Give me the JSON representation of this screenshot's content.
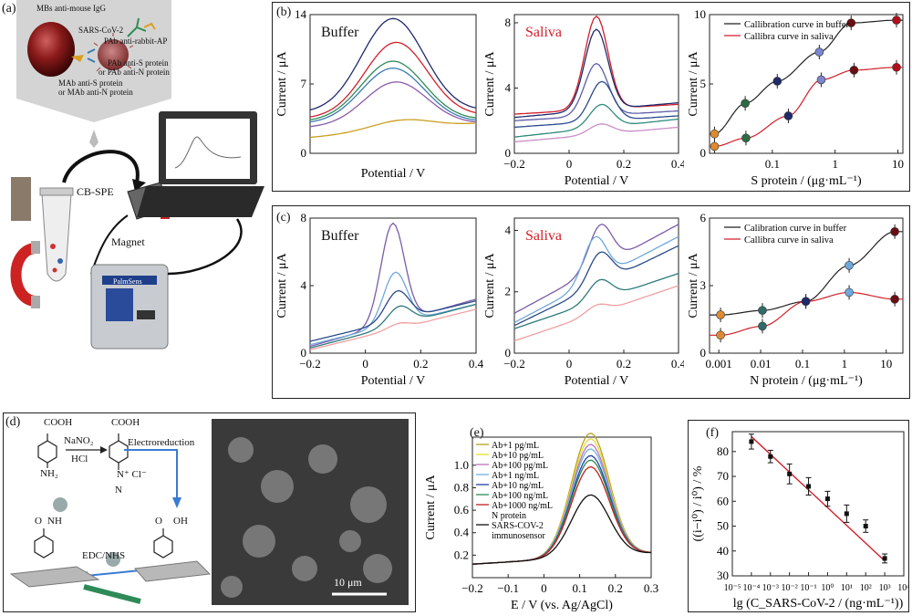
{
  "figure": {
    "panel_labels": {
      "a": "(a)",
      "b": "(b)",
      "c": "(c)",
      "d": "(d)",
      "e": "(e)",
      "f": "(f)"
    },
    "panel_a": {
      "texts": {
        "mbs": "MBs anti-mouse IgG",
        "virus": "SARS-CoV-2",
        "pab_ap": "PAb anti-rabbit-AP",
        "pab_s": "PAb anti-S protein",
        "pab_n": "or PAb anti-N protein",
        "mab_s": "MAb anti-S protein",
        "mab_n": "or MAb anti-N protein",
        "cbspe": "CB-SPE",
        "magnet": "Magnet",
        "device": "PalmSens"
      }
    },
    "panel_d": {
      "texts": {
        "cooh1": "COOH",
        "nh2": "NH₂",
        "nano2": "NaNO₂",
        "hcl": "HCl",
        "cooh2": "COOH",
        "n2cl": "N⁺ Cl⁻",
        "n": "N",
        "electroreduction": "Electroreduction",
        "nh": "NH",
        "oh": "OH",
        "o1": "O",
        "o2": "O",
        "edc": "EDC/NHS",
        "scalebar": "10 μm"
      }
    }
  },
  "chart_data": [
    {
      "id": "b1",
      "type": "line",
      "title": "Buffer",
      "xlabel": "Potential / V",
      "ylabel": "Current / μA",
      "xlim": [
        -0.2,
        0.4
      ],
      "ylim": [
        0,
        14
      ],
      "yticks": [
        "0",
        "7",
        "14"
      ],
      "xticks": [],
      "series": [
        {
          "color": "#1f2a6b",
          "peak": 13.6,
          "base_l": 4.1,
          "base_r": 4.3,
          "pos": 0.5
        },
        {
          "color": "#d11f2a",
          "peak": 11.2,
          "base_l": 3.5,
          "base_r": 3.8,
          "pos": 0.52
        },
        {
          "color": "#2e8b57",
          "peak": 9.3,
          "base_l": 3.2,
          "base_r": 3.4,
          "pos": 0.5
        },
        {
          "color": "#3a7bb0",
          "peak": 8.6,
          "base_l": 3.0,
          "base_r": 3.2,
          "pos": 0.5
        },
        {
          "color": "#8a5ca8",
          "peak": 7.2,
          "base_l": 2.6,
          "base_r": 3.0,
          "pos": 0.52
        },
        {
          "color": "#c9a020",
          "peak": 3.4,
          "base_l": 1.6,
          "base_r": 3.0,
          "pos": 0.6
        }
      ]
    },
    {
      "id": "b2",
      "type": "line",
      "title": "Saliva",
      "xlabel": "Potential / V",
      "ylabel": "Current / μA",
      "xlim": [
        -0.2,
        0.4
      ],
      "ylim": [
        0,
        8.5
      ],
      "yticks": [
        "0",
        "4",
        "8"
      ],
      "xticks": [
        "−0.2",
        "0",
        "0.2",
        "0.4"
      ],
      "series": [
        {
          "color": "#d11f2a",
          "peak": 8.4,
          "base_l": 2.4,
          "base_r": 3.0,
          "pos": 0.1
        },
        {
          "color": "#1f2a6b",
          "peak": 7.6,
          "base_l": 2.2,
          "base_r": 3.1,
          "pos": 0.1
        },
        {
          "color": "#5a5ca8",
          "peak": 5.5,
          "base_l": 2.0,
          "base_r": 2.6,
          "pos": 0.1
        },
        {
          "color": "#2a4a8a",
          "peak": 4.4,
          "base_l": 1.6,
          "base_r": 2.3,
          "pos": 0.12
        },
        {
          "color": "#2e8b7a",
          "peak": 3.0,
          "base_l": 1.0,
          "base_r": 2.1,
          "pos": 0.12
        },
        {
          "color": "#c88ec8",
          "peak": 1.8,
          "base_l": 0.7,
          "base_r": 1.6,
          "pos": 0.12
        }
      ]
    },
    {
      "id": "b3",
      "type": "scatter",
      "xscale": "log",
      "xlabel": "S protein / (μg·mL⁻¹)",
      "ylabel": "Current / μA",
      "xlim": [
        0.01,
        12
      ],
      "ylim": [
        0,
        10
      ],
      "yticks": [
        "0",
        "5",
        "10"
      ],
      "xticks": [
        "0.1",
        "1",
        "10"
      ],
      "legend": [
        "Callibration curve in buffer",
        "Callibra curve in saliva"
      ],
      "legend_position": "top",
      "series": [
        {
          "name": "Callibration curve in buffer",
          "color": "#222222",
          "x": [
            0.012,
            0.037,
            0.12,
            0.56,
            1.8,
            9.5
          ],
          "y": [
            1.4,
            3.6,
            5.2,
            7.3,
            9.4,
            9.6
          ]
        },
        {
          "name": "Callibra curve in saliva",
          "color": "#d11f2a",
          "x": [
            0.012,
            0.038,
            0.18,
            0.6,
            2.0,
            9.5
          ],
          "y": [
            0.5,
            1.1,
            2.7,
            5.3,
            6.0,
            6.2
          ]
        }
      ],
      "point_colors": [
        "#e08a30",
        "#2e6b44",
        "#1f2a6b",
        "#7a86cf",
        "#6a0e12",
        "#b30e18"
      ]
    },
    {
      "id": "c1",
      "type": "line",
      "title": "Buffer",
      "xlabel": "Potential / V",
      "ylabel": "Current / μA",
      "xlim": [
        -0.2,
        0.4
      ],
      "ylim": [
        0,
        8
      ],
      "yticks": [
        "0",
        "4",
        "8"
      ],
      "xticks": [
        "−0.2",
        "0",
        "0.2",
        "0.4"
      ],
      "series": [
        {
          "color": "#7a5ca8",
          "peak": 7.7,
          "base_l": 0.4,
          "base_r": 3.2,
          "pos": 0.1
        },
        {
          "color": "#6fa8dc",
          "peak": 4.8,
          "base_l": 0.5,
          "base_r": 2.9,
          "pos": 0.11
        },
        {
          "color": "#2a4a8a",
          "peak": 3.7,
          "base_l": 0.7,
          "base_r": 3.1,
          "pos": 0.12
        },
        {
          "color": "#2e7a7a",
          "peak": 2.8,
          "base_l": 0.3,
          "base_r": 2.9,
          "pos": 0.13
        },
        {
          "color": "#f0a0a0",
          "peak": 1.8,
          "base_l": 0.2,
          "base_r": 2.6,
          "pos": 0.14
        }
      ]
    },
    {
      "id": "c2",
      "type": "line",
      "title": "Saliva",
      "xlabel": "Potential / V",
      "ylabel": "Current / μA",
      "xlim": [
        -0.2,
        0.4
      ],
      "ylim": [
        0,
        4.4
      ],
      "yticks": [
        "0",
        "2",
        "4"
      ],
      "xticks": [
        "−0.2",
        "0",
        "0.2",
        "0.4"
      ],
      "series": [
        {
          "color": "#7a5ca8",
          "peak": 4.2,
          "base_l": 1.3,
          "base_r": 4.2,
          "pos": 0.12
        },
        {
          "color": "#6fa8dc",
          "peak": 3.8,
          "base_l": 1.0,
          "base_r": 3.8,
          "pos": 0.1
        },
        {
          "color": "#2a4a8a",
          "peak": 3.3,
          "base_l": 0.9,
          "base_r": 3.5,
          "pos": 0.12
        },
        {
          "color": "#2e7a7a",
          "peak": 2.4,
          "base_l": 0.8,
          "base_r": 2.6,
          "pos": 0.12
        },
        {
          "color": "#f0a0a0",
          "peak": 1.6,
          "base_l": 0.4,
          "base_r": 2.2,
          "pos": 0.12
        }
      ]
    },
    {
      "id": "c3",
      "type": "scatter",
      "xscale": "log",
      "xlabel": "N protein / (μg·mL⁻¹)",
      "ylabel": "Current / μA",
      "xlim": [
        0.0006,
        25
      ],
      "ylim": [
        0,
        6
      ],
      "yticks": [
        "0",
        "3",
        "6"
      ],
      "xticks": [
        "0.001",
        "0.01",
        "0.1",
        "1",
        "10"
      ],
      "legend": [
        "Calibration curve in buffer",
        "Callibra curve in saliva"
      ],
      "legend_position": "top",
      "series": [
        {
          "name": "Calibration curve in buffer",
          "color": "#222222",
          "x": [
            0.0011,
            0.011,
            0.12,
            1.3,
            16
          ],
          "y": [
            1.7,
            1.9,
            2.3,
            3.9,
            5.4
          ]
        },
        {
          "name": "Callibra curve in saliva",
          "color": "#d11f2a",
          "x": [
            0.0011,
            0.011,
            0.12,
            1.3,
            16
          ],
          "y": [
            0.8,
            1.2,
            2.3,
            2.7,
            2.4
          ]
        }
      ],
      "point_colors": [
        "#e08a30",
        "#2e6b6a",
        "#1f2a6b",
        "#6fa8dc",
        "#6a0e12"
      ]
    },
    {
      "id": "e",
      "type": "line",
      "xlabel": "E / V (vs. Ag/AgCl)",
      "ylabel": "Current / μA",
      "xlim": [
        -0.2,
        0.3
      ],
      "ylim": [
        0,
        1.25
      ],
      "yticks": [
        "0.2",
        "0.4",
        "0.6",
        "0.8",
        "1.0"
      ],
      "xticks": [
        "−0.2",
        "−0.1",
        "0",
        "0.1",
        "0.2",
        "0.3"
      ],
      "legend_position": "top-left",
      "series": [
        {
          "name": "Ab+1 pg/mL",
          "color": "#b8a020",
          "peak": 1.2
        },
        {
          "name": "Ab+10 pg/mL",
          "color": "#e0e030",
          "peak": 1.15
        },
        {
          "name": "Ab+100 pg/mL",
          "color": "#c070c0",
          "peak": 1.1
        },
        {
          "name": "Ab+1 ng/mL",
          "color": "#70b0e0",
          "peak": 1.06
        },
        {
          "name": "Ab+10 ng/mL",
          "color": "#2040a0",
          "peak": 1.0
        },
        {
          "name": "Ab+100 ng/mL",
          "color": "#2e8b57",
          "peak": 0.96
        },
        {
          "name": "Ab+1000 ng/mL\nN protein",
          "color": "#c02020",
          "peak": 0.9
        },
        {
          "name": "SARS-COV-2\nimmunosensor",
          "color": "#111111",
          "peak": 0.65
        }
      ]
    },
    {
      "id": "f",
      "type": "scatter",
      "xscale": "log",
      "xlabel": "lg (C_SARS-CoV-2 / (ng·mL⁻¹))",
      "ylabel": "((i−i⁰) / i⁰) / %",
      "xlim": [
        1e-05,
        10000
      ],
      "ylim": [
        30,
        88
      ],
      "yticks": [
        "30",
        "40",
        "50",
        "60",
        "70",
        "80"
      ],
      "xticks": [
        "10⁻⁵",
        "10⁻⁴",
        "10⁻³",
        "10⁻²",
        "10⁻¹",
        "10⁰",
        "10¹",
        "10²",
        "10³",
        "10⁴"
      ],
      "series": [
        {
          "name": "data",
          "color": "#111111",
          "x": [
            0.0001,
            0.001,
            0.01,
            0.1,
            1,
            10,
            100,
            1000
          ],
          "y": [
            84,
            78,
            71,
            66,
            61,
            55,
            50,
            37
          ],
          "err": [
            3,
            2.5,
            4,
            3.5,
            3,
            3.5,
            2.5,
            1.8
          ]
        },
        {
          "name": "fit",
          "color": "#d11f2a",
          "x": [
            0.0001,
            1000
          ],
          "y": [
            86,
            36
          ]
        }
      ]
    }
  ]
}
